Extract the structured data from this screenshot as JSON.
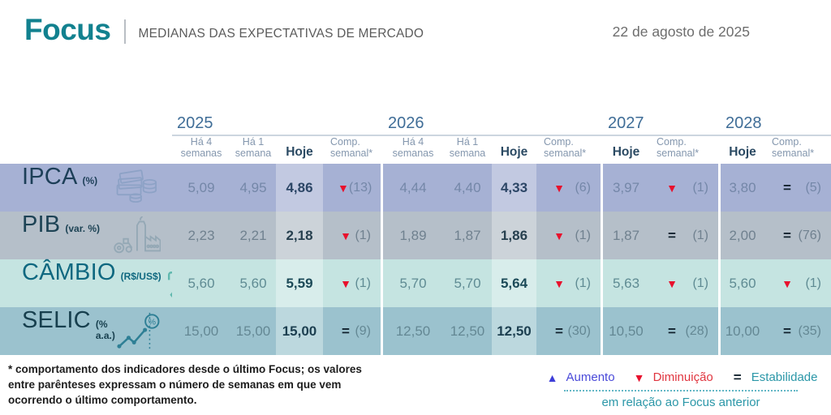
{
  "header": {
    "brand": "Focus",
    "subtitle": "MEDIANAS DAS EXPECTATIVAS DE MERCADO",
    "date": "22 de agosto de 2025"
  },
  "table": {
    "col_headers": {
      "ha4": "Há 4 semanas",
      "ha1": "Há 1 semana",
      "hoje": "Hoje",
      "comp": "Comp. semanal*"
    },
    "groups": [
      {
        "year": "2025"
      },
      {
        "year": "2026"
      },
      {
        "year": "2027"
      },
      {
        "year": "2028"
      }
    ],
    "rows": [
      {
        "id": "ipca",
        "label": "IPCA",
        "unit": "(%)",
        "icon": "money-icon",
        "colors": {
          "base": "#a6b1d4",
          "hoje": "#c2c9e1",
          "label": "#1d3f58",
          "muted": "#7487a8",
          "bold": "#2c4666",
          "icon": "#8da2c6"
        },
        "y2025": {
          "ha4": "5,09",
          "ha1": "4,95",
          "hoje": "4,86",
          "comp": {
            "dir": "down",
            "weeks": "(13)"
          }
        },
        "y2026": {
          "ha4": "4,44",
          "ha1": "4,40",
          "hoje": "4,33",
          "comp": {
            "dir": "down",
            "weeks": "(6)"
          }
        },
        "y2027": {
          "hoje": "3,97",
          "comp": {
            "dir": "down",
            "weeks": "(1)"
          }
        },
        "y2028": {
          "hoje": "3,80",
          "comp": {
            "dir": "equal",
            "weeks": "(5)"
          }
        }
      },
      {
        "id": "pib",
        "label": "PIB",
        "unit": "(var. %)",
        "icon": "industry-icon",
        "colors": {
          "base": "#b5bfc9",
          "hoje": "#ccd3d9",
          "label": "#1d4355",
          "muted": "#70818f",
          "bold": "#27404f",
          "icon": "#94a8b5"
        },
        "y2025": {
          "ha4": "2,23",
          "ha1": "2,21",
          "hoje": "2,18",
          "comp": {
            "dir": "down",
            "weeks": "(1)"
          }
        },
        "y2026": {
          "ha4": "1,89",
          "ha1": "1,87",
          "hoje": "1,86",
          "comp": {
            "dir": "down",
            "weeks": "(1)"
          }
        },
        "y2027": {
          "hoje": "1,87",
          "comp": {
            "dir": "equal",
            "weeks": "(1)"
          }
        },
        "y2028": {
          "hoje": "2,00",
          "comp": {
            "dir": "equal",
            "weeks": "(76)"
          }
        }
      },
      {
        "id": "cambio",
        "label": "CÂMBIO",
        "unit": "(R$/US$)",
        "icon": "currency-exchange-icon",
        "colors": {
          "base": "#c5e4e1",
          "hoje": "#d8edeb",
          "label": "#0f6880",
          "muted": "#5f8b93",
          "bold": "#1c4a58",
          "icon": "#5fb8ae"
        },
        "y2025": {
          "ha4": "5,60",
          "ha1": "5,60",
          "hoje": "5,59",
          "comp": {
            "dir": "down",
            "weeks": "(1)"
          }
        },
        "y2026": {
          "ha4": "5,70",
          "ha1": "5,70",
          "hoje": "5,64",
          "comp": {
            "dir": "down",
            "weeks": "(1)"
          }
        },
        "y2027": {
          "hoje": "5,63",
          "comp": {
            "dir": "down",
            "weeks": "(1)"
          }
        },
        "y2028": {
          "hoje": "5,60",
          "comp": {
            "dir": "down",
            "weeks": "(1)"
          }
        }
      },
      {
        "id": "selic",
        "label": "SELIC",
        "unit": "(% a.a.)",
        "icon": "interest-rate-icon",
        "colors": {
          "base": "#9bc2ce",
          "hoje": "#bcd8de",
          "label": "#173f4e",
          "muted": "#648894",
          "bold": "#1c3f50",
          "icon": "#2e7f95"
        },
        "y2025": {
          "ha4": "15,00",
          "ha1": "15,00",
          "hoje": "15,00",
          "comp": {
            "dir": "equal",
            "weeks": "(9)"
          }
        },
        "y2026": {
          "ha4": "12,50",
          "ha1": "12,50",
          "hoje": "12,50",
          "comp": {
            "dir": "equal",
            "weeks": "(30)"
          }
        },
        "y2027": {
          "hoje": "10,50",
          "comp": {
            "dir": "equal",
            "weeks": "(28)"
          }
        },
        "y2028": {
          "hoje": "10,00",
          "comp": {
            "dir": "equal",
            "weeks": "(35)"
          }
        }
      }
    ]
  },
  "footnote": "* comportamento dos indicadores desde o último Focus; os valores entre parênteses expressam o número de semanas em que vem ocorrendo o último comportamento.",
  "legend": {
    "up": {
      "symbol": "▲",
      "label": "Aumento",
      "color": "#3d3dd8"
    },
    "down": {
      "symbol": "▼",
      "label": "Diminuição",
      "color": "#e8112d"
    },
    "equal": {
      "symbol": "=",
      "label": "Estabilidade",
      "color": "#10202c"
    },
    "caption": "em relação ao Focus anterior"
  }
}
